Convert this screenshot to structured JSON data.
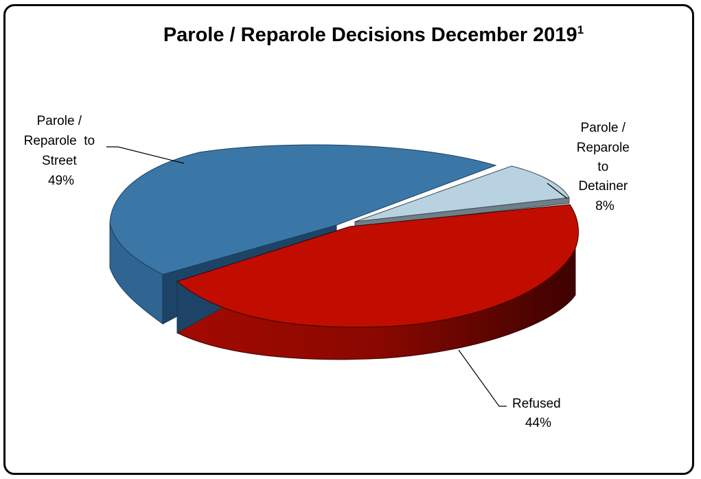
{
  "chart_data": {
    "type": "pie",
    "title": "Parole / Reparole Decisions December 2019",
    "title_superscript": "1",
    "slices": [
      {
        "label_lines": [
          "Parole /",
          "Reparole  to",
          "Street"
        ],
        "pct_label": "49%",
        "value": 49,
        "color": "#3a77a7"
      },
      {
        "label_lines": [
          "Parole /",
          "Reparole",
          "to",
          "Detainer"
        ],
        "pct_label": "8%",
        "value": 8,
        "color": "#b9d2e1"
      },
      {
        "label_lines": [
          "Refused"
        ],
        "pct_label": "44%",
        "value": 44,
        "color": "#c00d00"
      }
    ],
    "style": "3d-exploded",
    "legend": "none"
  }
}
